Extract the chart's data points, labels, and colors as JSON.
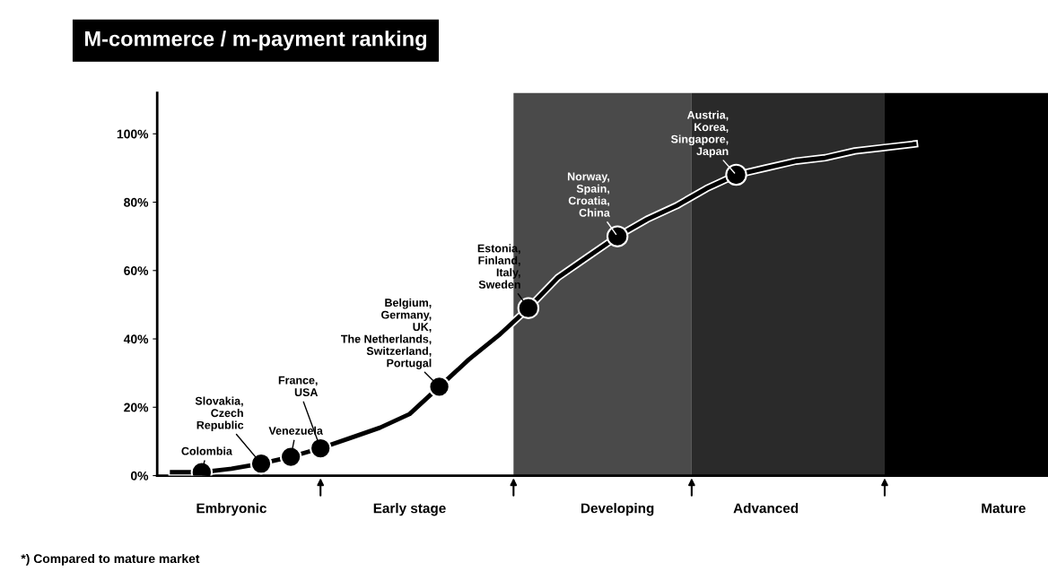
{
  "chart_data": {
    "type": "line",
    "title": "M-commerce / m-payment ranking",
    "categories": [
      null,
      null,
      "Embryonic",
      null,
      null,
      null,
      null,
      null,
      "Early stage",
      null,
      null,
      null,
      null,
      null,
      null,
      "Developing",
      null,
      null,
      null,
      null,
      "Advanced",
      null,
      null,
      null,
      null,
      null,
      null,
      null,
      "Mature",
      null
    ],
    "ylim": [
      0,
      112
    ],
    "yticks": [
      {
        "value": 0,
        "label": "0%"
      },
      {
        "value": 20,
        "label": "20%"
      },
      {
        "value": 40,
        "label": "40%"
      },
      {
        "value": 60,
        "label": "60%"
      },
      {
        "value": 80,
        "label": "80%"
      },
      {
        "value": 100,
        "label": "100%"
      }
    ],
    "grid": false,
    "series": [
      {
        "color": "#000000",
        "marker": "none",
        "line_style": "solid",
        "values": [
          1,
          1,
          2,
          3.5,
          5.5,
          8,
          11,
          14,
          18,
          26,
          34,
          41,
          49,
          58,
          64,
          70,
          75,
          79,
          84,
          88,
          90,
          92,
          93,
          95,
          96,
          97,
          null,
          null,
          null,
          null
        ]
      },
      {
        "type": "scatter",
        "name": "Colombia",
        "color": "#000000",
        "marker": "circle",
        "values": [
          null,
          1,
          null,
          null,
          null,
          null,
          null,
          null,
          null,
          null,
          null,
          null,
          null,
          null,
          null,
          null,
          null,
          null,
          null,
          null,
          null,
          null,
          null,
          null,
          null,
          null,
          null,
          null,
          null,
          null
        ]
      },
      {
        "type": "scatter",
        "name": "Slovakia,\nCzech\nRepublic",
        "color": "#000000",
        "marker": "circle",
        "values": [
          null,
          null,
          null,
          3.5,
          null,
          null,
          null,
          null,
          null,
          null,
          null,
          null,
          null,
          null,
          null,
          null,
          null,
          null,
          null,
          null,
          null,
          null,
          null,
          null,
          null,
          null,
          null,
          null,
          null,
          null
        ]
      },
      {
        "type": "scatter",
        "name": "Venezuela",
        "color": "#000000",
        "marker": "circle",
        "values": [
          null,
          null,
          null,
          null,
          5.5,
          null,
          null,
          null,
          null,
          null,
          null,
          null,
          null,
          null,
          null,
          null,
          null,
          null,
          null,
          null,
          null,
          null,
          null,
          null,
          null,
          null,
          null,
          null,
          null,
          null
        ]
      },
      {
        "type": "scatter",
        "name": "France,\nUSA",
        "color": "#000000",
        "marker": "circle",
        "values": [
          null,
          null,
          null,
          null,
          null,
          8,
          null,
          null,
          null,
          null,
          null,
          null,
          null,
          null,
          null,
          null,
          null,
          null,
          null,
          null,
          null,
          null,
          null,
          null,
          null,
          null,
          null,
          null,
          null,
          null
        ]
      },
      {
        "type": "scatter",
        "name": "Belgium,\nGermany,\nUK,\nThe Netherlands,\nSwitzerland,\nPortugal",
        "color": "#000000",
        "marker": "circle",
        "values": [
          null,
          null,
          null,
          null,
          null,
          null,
          null,
          null,
          null,
          26,
          null,
          null,
          null,
          null,
          null,
          null,
          null,
          null,
          null,
          null,
          null,
          null,
          null,
          null,
          null,
          null,
          null,
          null,
          null,
          null
        ]
      },
      {
        "type": "scatter",
        "name": "Estonia,\nFinland,\nItaly,\nSweden",
        "color": "#000000",
        "marker": "circle",
        "values": [
          null,
          null,
          null,
          null,
          null,
          null,
          null,
          null,
          null,
          null,
          null,
          null,
          49,
          null,
          null,
          null,
          null,
          null,
          null,
          null,
          null,
          null,
          null,
          null,
          null,
          null,
          null,
          null,
          null,
          null
        ]
      },
      {
        "type": "scatter",
        "name": "Norway,\nSpain,\nCroatia,\nChina",
        "color": "#000000",
        "marker": "circle",
        "values": [
          null,
          null,
          null,
          null,
          null,
          null,
          null,
          null,
          null,
          null,
          null,
          null,
          null,
          null,
          null,
          70,
          null,
          null,
          null,
          null,
          null,
          null,
          null,
          null,
          null,
          null,
          null,
          null,
          null,
          null
        ]
      },
      {
        "type": "scatter",
        "name": "Austria,\nKorea,\nSingapore,\nJapan",
        "color": "#000000",
        "marker": "circle",
        "values": [
          null,
          null,
          null,
          null,
          null,
          null,
          null,
          null,
          null,
          null,
          null,
          null,
          null,
          null,
          null,
          null,
          null,
          null,
          null,
          88,
          null,
          null,
          null,
          null,
          null,
          null,
          null,
          null,
          null,
          null
        ]
      }
    ],
    "annotations": [
      "*) Compared to mature market"
    ]
  }
}
